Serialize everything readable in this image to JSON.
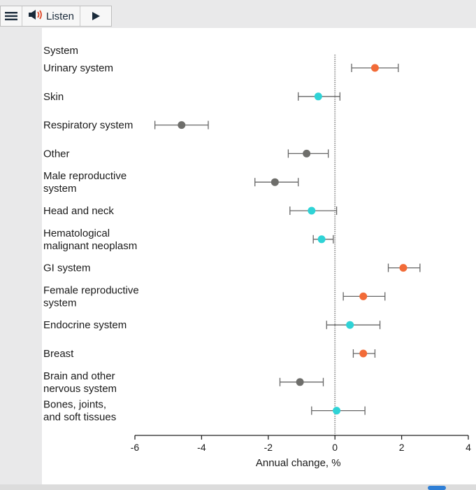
{
  "toolbar": {
    "listen_label": "Listen",
    "menu_icon": "hamburger-menu-icon",
    "speaker_icon": "speaker-icon",
    "play_icon": "play-icon"
  },
  "chart_data": {
    "type": "forest",
    "xlabel": "Annual change, %",
    "xlim": [
      -6,
      4
    ],
    "xticks": [
      -6,
      -4,
      -2,
      0,
      2,
      4
    ],
    "column_header": "System",
    "reference_line": 0,
    "colors": {
      "orange": "#f26b38",
      "teal": "#2fd3d6",
      "gray": "#6e6e6b"
    },
    "rows": [
      {
        "label": [
          "Urinary system"
        ],
        "value": 1.2,
        "low": 0.5,
        "high": 1.9,
        "color": "orange"
      },
      {
        "label": [
          "Skin"
        ],
        "value": -0.5,
        "low": -1.1,
        "high": 0.15,
        "color": "teal"
      },
      {
        "label": [
          "Respiratory system"
        ],
        "value": -4.6,
        "low": -5.4,
        "high": -3.8,
        "color": "gray"
      },
      {
        "label": [
          "Other"
        ],
        "value": -0.85,
        "low": -1.4,
        "high": -0.2,
        "color": "gray"
      },
      {
        "label": [
          "Male reproductive",
          "system"
        ],
        "value": -1.8,
        "low": -2.4,
        "high": -1.1,
        "color": "gray"
      },
      {
        "label": [
          "Head and neck"
        ],
        "value": -0.7,
        "low": -1.35,
        "high": 0.05,
        "color": "teal"
      },
      {
        "label": [
          "Hematological",
          "malignant neoplasm"
        ],
        "value": -0.4,
        "low": -0.65,
        "high": -0.05,
        "color": "teal"
      },
      {
        "label": [
          "GI system"
        ],
        "value": 2.05,
        "low": 1.6,
        "high": 2.55,
        "color": "orange"
      },
      {
        "label": [
          "Female reproductive",
          "system"
        ],
        "value": 0.85,
        "low": 0.25,
        "high": 1.5,
        "color": "orange"
      },
      {
        "label": [
          "Endocrine system"
        ],
        "value": 0.45,
        "low": -0.25,
        "high": 1.35,
        "color": "teal"
      },
      {
        "label": [
          "Breast"
        ],
        "value": 0.85,
        "low": 0.55,
        "high": 1.2,
        "color": "orange"
      },
      {
        "label": [
          "Brain and other",
          "nervous system"
        ],
        "value": -1.05,
        "low": -1.65,
        "high": -0.35,
        "color": "gray"
      },
      {
        "label": [
          "Bones, joints,",
          "and soft tissues"
        ],
        "value": 0.05,
        "low": -0.7,
        "high": 0.9,
        "color": "teal"
      }
    ]
  }
}
